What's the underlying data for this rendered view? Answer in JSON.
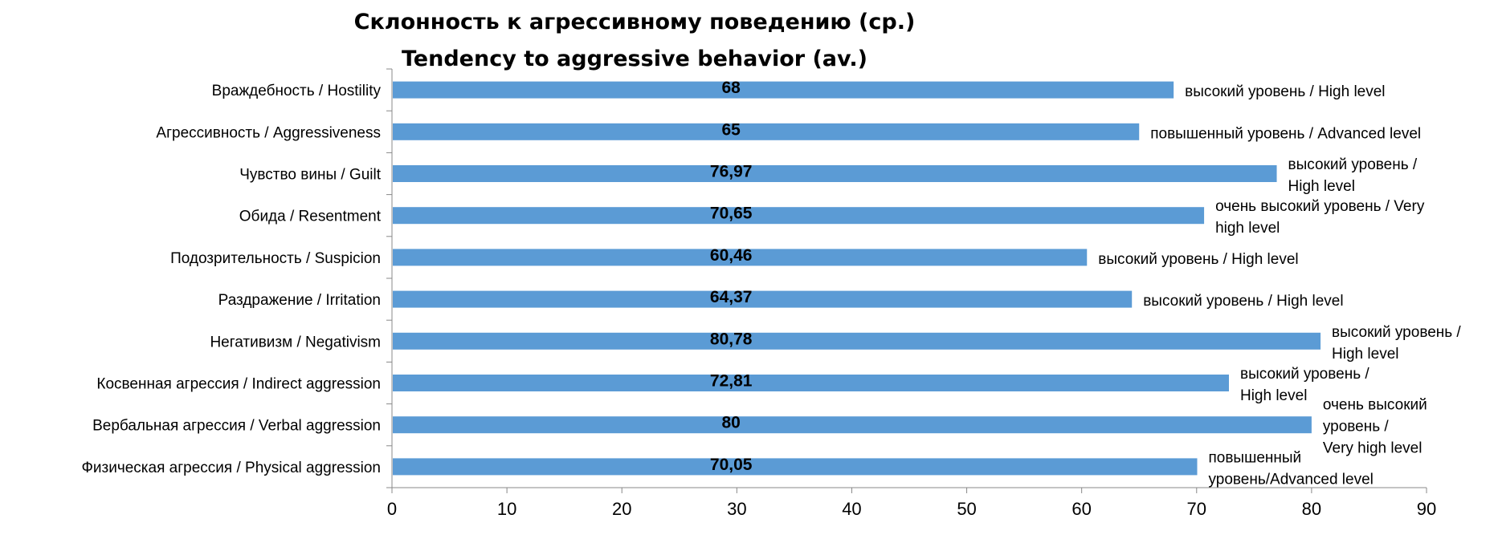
{
  "chart_data": {
    "type": "bar",
    "orientation": "horizontal",
    "title": "Склонность к агрессивному поведению (ср.)",
    "subtitle": "Tendency to aggressive behavior (av.)",
    "xlabel": "",
    "ylabel": "",
    "xlim": [
      0,
      90
    ],
    "x_ticks": [
      "0",
      "10",
      "20",
      "30",
      "40",
      "50",
      "60",
      "70",
      "80",
      "90"
    ],
    "grid": false,
    "legend": "none",
    "bar_color": "#5B9BD5",
    "categories": [
      "Враждебность / Hostility",
      "Агрессивность / Aggressiveness",
      "Чувство вины / Guilt",
      "Обида / Resentment",
      "Подозрительность / Suspicion",
      "Раздражение / Irritation",
      "Негативизм / Negativism",
      "Косвенная агрессия / Indirect aggression",
      "Вербальная агрессия / Verbal aggression",
      "Физическая агрессия / Physical aggression"
    ],
    "values": [
      68,
      65,
      76.97,
      70.65,
      60.46,
      64.37,
      80.78,
      72.81,
      80,
      70.05
    ],
    "value_labels": [
      "68",
      "65",
      "76,97",
      "70,65",
      "60,46",
      "64,37",
      "80,78",
      "72,81",
      "80",
      "70,05"
    ],
    "level_labels": [
      [
        "высокий уровень / High level"
      ],
      [
        "повышенный уровень / Advanced level"
      ],
      [
        "высокий уровень /",
        "High level"
      ],
      [
        "очень высокий уровень / Very",
        "high level"
      ],
      [
        "высокий уровень / High level"
      ],
      [
        "высокий уровень / High level"
      ],
      [
        "высокий уровень /",
        "High level"
      ],
      [
        "высокий уровень /",
        "High level"
      ],
      [
        "очень высокий",
        "уровень /",
        "Very high level"
      ],
      [
        "повышенный",
        "уровень/Advanced level"
      ]
    ]
  }
}
